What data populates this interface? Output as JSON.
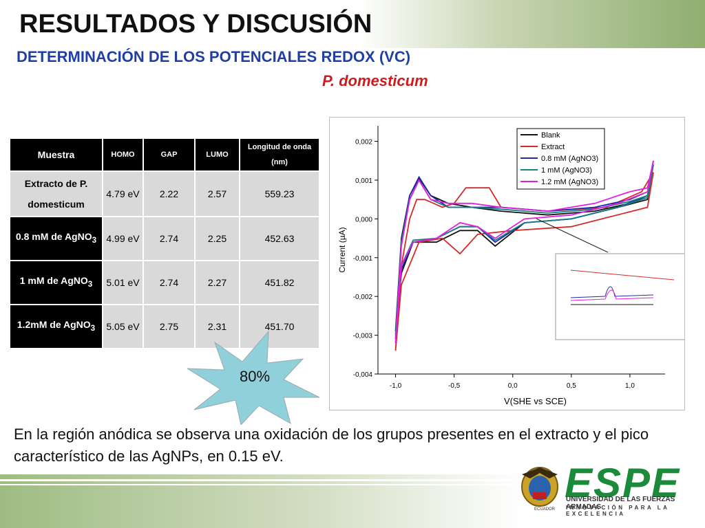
{
  "header": {
    "title": "RESULTADOS Y DISCUSIÓN",
    "subtitle": "DETERMINACIÓN DE LOS POTENCIALES REDOX (VC)",
    "species": "P. domesticum"
  },
  "table": {
    "header": [
      "Muestra",
      "HOMO",
      "GAP",
      "LUMO",
      "Longitud de onda (nm)"
    ],
    "rows": [
      [
        {
          "text": "Extracto de P. domesticum"
        },
        "4.79 eV",
        "2.22",
        "2.57",
        "559.23"
      ],
      [
        {
          "text": "0.8 mM de AgNO",
          "sub": "3"
        },
        "4.99 eV",
        "2.74",
        "2.25",
        "452.63"
      ],
      [
        {
          "text": "1 mM de AgNO",
          "sub": "3"
        },
        "5.01 eV",
        "2.74",
        "2.27",
        "451.82"
      ],
      [
        {
          "text": "1.2mM de AgNO",
          "sub": "3"
        },
        "5.05 eV",
        "2.75",
        "2.31",
        "451.70"
      ]
    ]
  },
  "badge": "80%",
  "body": "En la región anódica se observa una oxidación de los grupos presentes en el extracto y el pico característico de las AgNPs, en 0.15 eV.",
  "footer": {
    "brand": "ESPE",
    "university": "UNIVERSIDAD DE LAS FUERZAS ARMADAS",
    "motto": "INNOVACIÓN PARA LA EXCELENCIA",
    "country": "ECUADOR"
  },
  "chart_data": {
    "type": "line",
    "xlabel": "V(SHE vs SCE)",
    "ylabel": "Current (µA)",
    "xlim": [
      -1.15,
      1.3
    ],
    "ylim": [
      -0.004,
      0.0024
    ],
    "xticks": [
      {
        "value": -1.0,
        "label": "-1,0"
      },
      {
        "value": -0.5,
        "label": "-0,5"
      },
      {
        "value": 0.0,
        "label": "0,0"
      },
      {
        "value": 0.5,
        "label": "0,5"
      },
      {
        "value": 1.0,
        "label": "1,0"
      }
    ],
    "yticks": [
      {
        "value": 0.002,
        "label": "0,002"
      },
      {
        "value": 0.001,
        "label": "0,001"
      },
      {
        "value": 0.0,
        "label": "0,000"
      },
      {
        "value": -0.001,
        "label": "-0,001"
      },
      {
        "value": -0.002,
        "label": "-0,002"
      },
      {
        "value": -0.003,
        "label": "-0,003"
      },
      {
        "value": -0.004,
        "label": "-0,004"
      }
    ],
    "legend": "top-right",
    "series": [
      {
        "name": "Blank",
        "color": "#111111",
        "x": [
          -1.0,
          -0.95,
          -0.88,
          -0.8,
          -0.7,
          -0.55,
          -0.35,
          -0.1,
          0.3,
          0.7,
          1.0,
          1.15,
          1.2,
          1.15,
          0.9,
          0.5,
          0.1,
          -0.15,
          -0.3,
          -0.45,
          -0.65,
          -0.85,
          -0.95,
          -1.0
        ],
        "values": [
          -0.0029,
          -0.0005,
          0.0006,
          0.00105,
          0.0006,
          0.0004,
          0.0003,
          0.0002,
          0.0001,
          0.0002,
          0.0004,
          0.0006,
          0.0014,
          0.0005,
          0.0003,
          0.0,
          -0.0001,
          -0.0007,
          -0.0003,
          -0.0003,
          -0.0006,
          -0.0006,
          -0.0014,
          -0.0029
        ]
      },
      {
        "name": "Extract",
        "color": "#d42a2a",
        "x": [
          -1.0,
          -0.95,
          -0.88,
          -0.82,
          -0.75,
          -0.6,
          -0.5,
          -0.4,
          -0.2,
          -0.1,
          0.3,
          0.8,
          1.1,
          1.2,
          1.15,
          0.5,
          0.0,
          -0.3,
          -0.45,
          -0.6,
          -0.8,
          -0.95,
          -1.0
        ],
        "values": [
          -0.0034,
          -0.0012,
          0.0,
          0.0005,
          0.0005,
          0.0003,
          0.0004,
          0.0008,
          0.0008,
          0.0003,
          0.0002,
          0.0003,
          0.0007,
          0.0012,
          0.0003,
          -0.0002,
          -0.0003,
          -0.0004,
          -0.0009,
          -0.0005,
          -0.0006,
          -0.0017,
          -0.0034
        ]
      },
      {
        "name": "0.8 mM (AgNO3)",
        "color": "#1c2aa6",
        "x": [
          -1.0,
          -0.95,
          -0.88,
          -0.8,
          -0.7,
          -0.55,
          -0.35,
          -0.1,
          0.3,
          0.7,
          1.0,
          1.15,
          1.2,
          1.15,
          0.9,
          0.5,
          0.1,
          -0.15,
          -0.3,
          -0.45,
          -0.65,
          -0.85,
          -0.95,
          -1.0
        ],
        "values": [
          -0.0031,
          -0.0006,
          0.0006,
          0.00108,
          0.0006,
          0.0003,
          0.0003,
          0.0003,
          0.0002,
          0.0003,
          0.0005,
          0.0007,
          0.0015,
          0.0006,
          0.0003,
          0.0,
          -0.0001,
          -0.0006,
          -0.0002,
          -0.0002,
          -0.0005,
          -0.0006,
          -0.0013,
          -0.0031
        ]
      },
      {
        "name": "1 mM (AgNO3)",
        "color": "#168080",
        "x": [
          -1.0,
          -0.95,
          -0.88,
          -0.8,
          -0.7,
          -0.55,
          -0.35,
          -0.1,
          0.3,
          0.7,
          1.0,
          1.15,
          1.2,
          1.15,
          0.9,
          0.5,
          0.1,
          -0.15,
          -0.3,
          -0.45,
          -0.65,
          -0.85,
          -0.95,
          -1.0
        ],
        "values": [
          -0.003,
          -0.0006,
          0.0005,
          0.001,
          0.0005,
          0.0003,
          0.0003,
          0.00025,
          0.00015,
          0.00025,
          0.00045,
          0.0006,
          0.0014,
          0.00055,
          0.0003,
          0.0,
          -0.0001,
          -0.00055,
          -0.0002,
          -0.0002,
          -0.0005,
          -0.00055,
          -0.0012,
          -0.003
        ]
      },
      {
        "name": "1.2 mM (AgNO3)",
        "color": "#e020e0",
        "x": [
          -1.0,
          -0.95,
          -0.88,
          -0.8,
          -0.7,
          -0.55,
          -0.35,
          -0.1,
          0.3,
          0.7,
          1.0,
          1.15,
          1.2,
          1.15,
          0.9,
          0.5,
          0.1,
          -0.15,
          -0.3,
          -0.45,
          -0.65,
          -0.85,
          -0.95,
          -1.0
        ],
        "values": [
          -0.0032,
          -0.0007,
          0.0005,
          0.001,
          0.0005,
          0.0004,
          0.0004,
          0.0003,
          0.0002,
          0.0004,
          0.0007,
          0.0008,
          0.0015,
          0.0007,
          0.0004,
          0.0001,
          0.0,
          -0.0005,
          -0.0002,
          -0.0001,
          -0.0005,
          -0.0006,
          -0.0012,
          -0.0032
        ]
      }
    ]
  }
}
